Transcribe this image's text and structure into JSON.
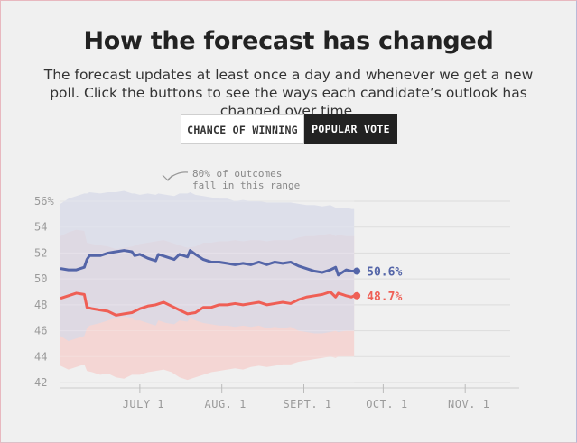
{
  "header": {
    "title": "How the forecast has changed",
    "subtitle": "The forecast updates at least once a day and whenever we get a new poll. Click the buttons to see the ways each candidate’s outlook has changed over time."
  },
  "toggle": {
    "chance_label": "CHANCE OF WINNING",
    "popular_label": "POPULAR VOTE",
    "selected": "POPULAR VOTE"
  },
  "annotation": {
    "line1": "80% of outcomes",
    "line2": "fall in this range"
  },
  "colors": {
    "blue": "#5465a8",
    "red": "#ef5f55",
    "blue_band": "#d7d9e8",
    "red_band": "#f5d1cf",
    "overlap_band": "#e6cfd8",
    "grid": "#dddddd"
  },
  "chart_data": {
    "type": "line",
    "title": "How the forecast has changed",
    "ylim": [
      42,
      56
    ],
    "yticks": [
      "56%",
      "54",
      "52",
      "50",
      "48",
      "46",
      "44",
      "42"
    ],
    "ytick_values": [
      56,
      54,
      52,
      50,
      48,
      46,
      44,
      42
    ],
    "xtick_labels": [
      "JULY 1",
      "AUG. 1",
      "SEPT. 1",
      "OCT. 1",
      "NOV. 1"
    ],
    "xtick_days": [
      30,
      61,
      92,
      122,
      153
    ],
    "xlim_days": [
      0,
      170
    ],
    "x_unit": "days from June 1",
    "grid": true,
    "series": [
      {
        "name": "blue",
        "end_label": "50.6%",
        "x": [
          0,
          3,
          6,
          9,
          10,
          11,
          15,
          18,
          21,
          24,
          27,
          28,
          30,
          33,
          36,
          37,
          40,
          43,
          45,
          48,
          49,
          51,
          54,
          57,
          60,
          63,
          66,
          69,
          72,
          75,
          78,
          81,
          84,
          87,
          90,
          93,
          96,
          99,
          102,
          104,
          105,
          108,
          110,
          111
        ],
        "values": [
          50.8,
          50.7,
          50.7,
          50.9,
          51.5,
          51.8,
          51.8,
          52.0,
          52.1,
          52.2,
          52.1,
          51.8,
          51.9,
          51.6,
          51.4,
          51.9,
          51.7,
          51.5,
          51.9,
          51.7,
          52.2,
          51.9,
          51.5,
          51.3,
          51.3,
          51.2,
          51.1,
          51.2,
          51.1,
          51.3,
          51.1,
          51.3,
          51.2,
          51.3,
          51.0,
          50.8,
          50.6,
          50.5,
          50.7,
          50.9,
          50.3,
          50.7,
          50.6,
          50.6
        ],
        "band_upper": [
          55.8,
          56.2,
          56.4,
          56.6,
          56.6,
          56.7,
          56.6,
          56.7,
          56.7,
          56.8,
          56.6,
          56.6,
          56.5,
          56.6,
          56.5,
          56.6,
          56.5,
          56.4,
          56.6,
          56.6,
          56.7,
          56.5,
          56.4,
          56.3,
          56.2,
          56.2,
          56.0,
          56.1,
          56.0,
          56.0,
          55.9,
          55.9,
          55.9,
          55.9,
          55.8,
          55.7,
          55.7,
          55.6,
          55.7,
          55.5,
          55.5,
          55.5,
          55.4,
          55.4
        ],
        "band_lower": [
          45.6,
          45.2,
          45.4,
          45.6,
          46.2,
          46.4,
          46.6,
          46.8,
          47.0,
          47.1,
          47.0,
          46.8,
          46.8,
          46.6,
          46.4,
          46.8,
          46.6,
          46.5,
          46.8,
          46.7,
          47.0,
          46.8,
          46.6,
          46.5,
          46.4,
          46.4,
          46.3,
          46.4,
          46.3,
          46.4,
          46.2,
          46.3,
          46.2,
          46.3,
          46.0,
          45.9,
          45.8,
          45.8,
          45.9,
          46.0,
          45.9,
          46.0,
          46.0,
          46.0
        ]
      },
      {
        "name": "red",
        "end_label": "48.7%",
        "x": [
          0,
          3,
          6,
          9,
          10,
          12,
          15,
          18,
          21,
          24,
          27,
          30,
          33,
          36,
          39,
          42,
          45,
          48,
          51,
          54,
          57,
          60,
          63,
          66,
          69,
          72,
          75,
          78,
          81,
          84,
          87,
          90,
          93,
          96,
          99,
          102,
          104,
          105,
          108,
          110,
          111
        ],
        "values": [
          48.5,
          48.7,
          48.9,
          48.8,
          47.8,
          47.7,
          47.6,
          47.5,
          47.2,
          47.3,
          47.4,
          47.7,
          47.9,
          48.0,
          48.2,
          47.9,
          47.6,
          47.3,
          47.4,
          47.8,
          47.8,
          48.0,
          48.0,
          48.1,
          48.0,
          48.1,
          48.2,
          48.0,
          48.1,
          48.2,
          48.1,
          48.4,
          48.6,
          48.7,
          48.8,
          49.0,
          48.6,
          48.9,
          48.7,
          48.6,
          48.7
        ],
        "band_upper": [
          53.3,
          53.6,
          53.8,
          53.7,
          52.8,
          52.7,
          52.6,
          52.5,
          52.3,
          52.4,
          52.5,
          52.7,
          52.8,
          52.9,
          53.0,
          52.8,
          52.6,
          52.4,
          52.5,
          52.8,
          52.8,
          52.9,
          52.9,
          53.0,
          52.9,
          53.0,
          53.0,
          52.9,
          53.0,
          53.0,
          53.0,
          53.2,
          53.3,
          53.3,
          53.4,
          53.5,
          53.3,
          53.4,
          53.3,
          53.3,
          53.3
        ],
        "band_lower": [
          43.3,
          43.0,
          43.2,
          43.4,
          42.9,
          42.8,
          42.6,
          42.7,
          42.4,
          42.3,
          42.6,
          42.6,
          42.8,
          42.9,
          43.0,
          42.8,
          42.4,
          42.2,
          42.4,
          42.6,
          42.8,
          42.9,
          43.0,
          43.1,
          43.0,
          43.2,
          43.3,
          43.2,
          43.3,
          43.4,
          43.4,
          43.6,
          43.7,
          43.8,
          43.9,
          44.0,
          43.9,
          44.0,
          44.0,
          44.0,
          44.0
        ]
      }
    ]
  }
}
